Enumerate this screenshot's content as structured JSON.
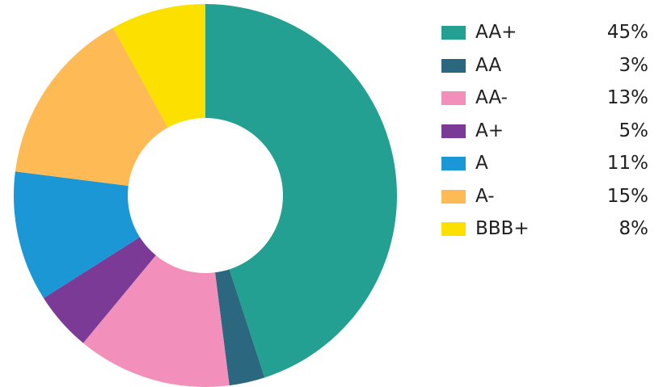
{
  "chart_data": {
    "type": "pie",
    "title": "",
    "categories": [
      "AA+",
      "AA",
      "AA-",
      "A+",
      "A",
      "A-",
      "BBB+"
    ],
    "values": [
      45,
      3,
      13,
      5,
      11,
      15,
      8
    ],
    "value_labels": [
      "45%",
      "3%",
      "13%",
      "5%",
      "11%",
      "15%",
      "8%"
    ],
    "unit": "%",
    "colors": [
      "#23a091",
      "#2b6880",
      "#f290bb",
      "#7b3a96",
      "#1b97d6",
      "#fdba55",
      "#fbe000"
    ],
    "hole_color": "#ffffff",
    "legend_position": "right",
    "donut": true,
    "start_angle": "top",
    "direction": "clockwise"
  }
}
